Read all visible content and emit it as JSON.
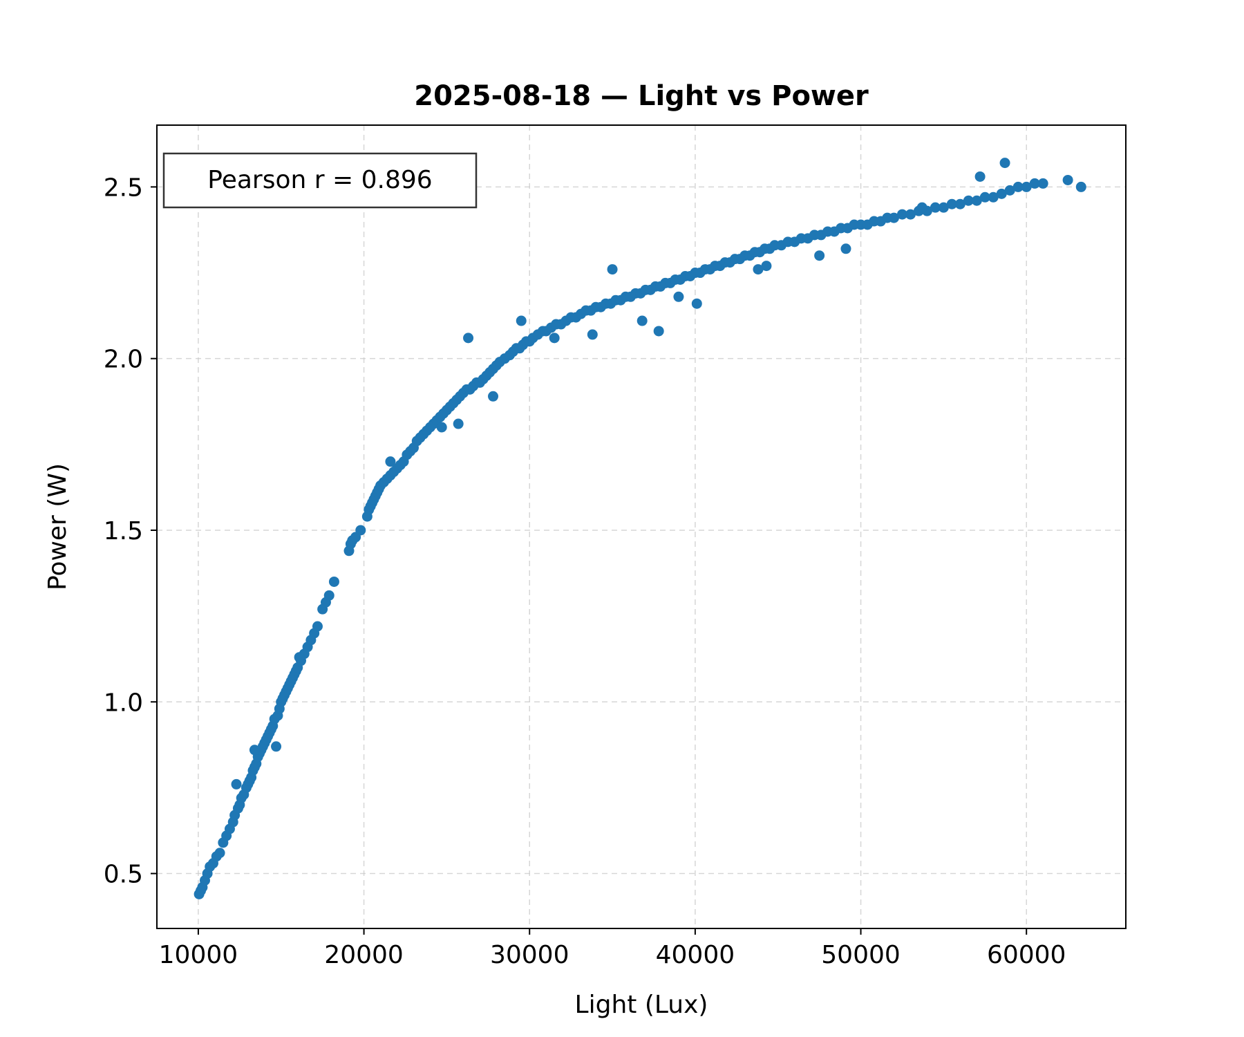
{
  "chart_data": {
    "type": "scatter",
    "title": "2025-08-18 — Light vs Power",
    "xlabel": "Light (Lux)",
    "ylabel": "Power (W)",
    "xlim": [
      7500,
      66000
    ],
    "ylim": [
      0.34,
      2.68
    ],
    "xticks": [
      10000,
      20000,
      30000,
      40000,
      50000,
      60000
    ],
    "xtick_labels": [
      "10000",
      "20000",
      "30000",
      "40000",
      "50000",
      "60000"
    ],
    "yticks": [
      0.5,
      1.0,
      1.5,
      2.0,
      2.5
    ],
    "ytick_labels": [
      "0.5",
      "1.0",
      "1.5",
      "2.0",
      "2.5"
    ],
    "grid": true,
    "annotation": "Pearson r = 0.896",
    "annotation_placement": "top-left",
    "marker_color": "#1f77b4",
    "x": [
      10050,
      10150,
      10250,
      10400,
      10550,
      10700,
      10900,
      11100,
      11300,
      11500,
      11700,
      11900,
      12100,
      12200,
      12400,
      12500,
      12600,
      12750,
      12900,
      13000,
      13100,
      13200,
      13300,
      13400,
      13500,
      13600,
      13700,
      13800,
      13900,
      14000,
      14100,
      14200,
      14300,
      14400,
      14500,
      14600,
      14800,
      14900,
      15000,
      15100,
      15200,
      15300,
      15400,
      15500,
      15600,
      15700,
      15800,
      15900,
      16000,
      16200,
      16400,
      16600,
      16800,
      17000,
      17200,
      17500,
      17700,
      17900,
      18200,
      19100,
      19200,
      19300,
      19500,
      19800,
      20200,
      20300,
      20400,
      20500,
      20600,
      20700,
      20800,
      20900,
      21000,
      21200,
      21400,
      21600,
      21800,
      22000,
      22200,
      22400,
      22600,
      22800,
      23000,
      23200,
      23400,
      23600,
      23800,
      24000,
      24200,
      24400,
      24600,
      24800,
      25000,
      25200,
      25400,
      25600,
      25800,
      26000,
      26200,
      26400,
      26600,
      26800,
      27000,
      27200,
      27400,
      27600,
      27800,
      28000,
      28200,
      28500,
      28800,
      29000,
      29200,
      29400,
      29600,
      29800,
      30000,
      30200,
      30500,
      30800,
      31000,
      31300,
      31600,
      31900,
      32200,
      32500,
      32800,
      33100,
      33400,
      33700,
      34000,
      34300,
      34600,
      34900,
      35200,
      35500,
      35800,
      36100,
      36400,
      36700,
      37000,
      37300,
      37600,
      37900,
      38200,
      38500,
      38800,
      39100,
      39400,
      39700,
      40000,
      40300,
      40600,
      40900,
      41200,
      41500,
      41800,
      42100,
      42400,
      42700,
      43000,
      43300,
      43600,
      43900,
      44200,
      44500,
      44800,
      45200,
      45600,
      46000,
      46400,
      46800,
      47200,
      47600,
      48000,
      48400,
      48800,
      49200,
      49600,
      50000,
      50400,
      50800,
      51200,
      51600,
      52000,
      52500,
      53000,
      53500,
      54000,
      54500,
      55000,
      55500,
      56000,
      56500,
      57000,
      57500,
      58000,
      58500,
      59000,
      59500,
      60000,
      60500,
      61000,
      62500,
      63300,
      26300,
      35000,
      37800,
      40100,
      29500,
      58700,
      57200,
      25700,
      36800,
      33800,
      47500,
      53700,
      44300,
      49100,
      43800,
      39000,
      31500,
      27800,
      24700,
      21600,
      16100,
      14700,
      13400,
      12300
    ],
    "y": [
      0.44,
      0.45,
      0.46,
      0.48,
      0.5,
      0.52,
      0.53,
      0.55,
      0.56,
      0.59,
      0.61,
      0.63,
      0.65,
      0.67,
      0.69,
      0.7,
      0.72,
      0.73,
      0.75,
      0.76,
      0.77,
      0.78,
      0.8,
      0.81,
      0.82,
      0.84,
      0.85,
      0.86,
      0.87,
      0.88,
      0.89,
      0.9,
      0.91,
      0.92,
      0.93,
      0.95,
      0.96,
      0.98,
      1.0,
      1.01,
      1.02,
      1.03,
      1.04,
      1.05,
      1.06,
      1.07,
      1.08,
      1.09,
      1.1,
      1.12,
      1.14,
      1.16,
      1.18,
      1.2,
      1.22,
      1.27,
      1.29,
      1.31,
      1.35,
      1.44,
      1.46,
      1.47,
      1.48,
      1.5,
      1.54,
      1.56,
      1.57,
      1.58,
      1.59,
      1.6,
      1.61,
      1.62,
      1.63,
      1.64,
      1.65,
      1.66,
      1.67,
      1.68,
      1.69,
      1.7,
      1.72,
      1.73,
      1.74,
      1.76,
      1.77,
      1.78,
      1.79,
      1.8,
      1.81,
      1.82,
      1.83,
      1.84,
      1.85,
      1.86,
      1.87,
      1.88,
      1.89,
      1.9,
      1.91,
      1.91,
      1.92,
      1.93,
      1.93,
      1.94,
      1.95,
      1.96,
      1.97,
      1.98,
      1.99,
      2.0,
      2.01,
      2.02,
      2.03,
      2.03,
      2.04,
      2.05,
      2.05,
      2.06,
      2.07,
      2.08,
      2.08,
      2.09,
      2.1,
      2.1,
      2.11,
      2.12,
      2.12,
      2.13,
      2.14,
      2.14,
      2.15,
      2.15,
      2.16,
      2.16,
      2.17,
      2.17,
      2.18,
      2.18,
      2.19,
      2.19,
      2.2,
      2.2,
      2.21,
      2.21,
      2.22,
      2.22,
      2.23,
      2.23,
      2.24,
      2.24,
      2.25,
      2.25,
      2.26,
      2.26,
      2.27,
      2.27,
      2.28,
      2.28,
      2.29,
      2.29,
      2.3,
      2.3,
      2.31,
      2.31,
      2.32,
      2.32,
      2.33,
      2.33,
      2.34,
      2.34,
      2.35,
      2.35,
      2.36,
      2.36,
      2.37,
      2.37,
      2.38,
      2.38,
      2.39,
      2.39,
      2.39,
      2.4,
      2.4,
      2.41,
      2.41,
      2.42,
      2.42,
      2.43,
      2.43,
      2.44,
      2.44,
      2.45,
      2.45,
      2.46,
      2.46,
      2.47,
      2.47,
      2.48,
      2.49,
      2.5,
      2.5,
      2.51,
      2.51,
      2.52,
      2.5,
      2.06,
      2.26,
      2.08,
      2.16,
      2.11,
      2.57,
      2.53,
      1.81,
      2.11,
      2.07,
      2.3,
      2.44,
      2.27,
      2.32,
      2.26,
      2.18,
      2.06,
      1.89,
      1.8,
      1.7,
      1.13,
      0.87,
      0.86,
      0.76
    ]
  }
}
